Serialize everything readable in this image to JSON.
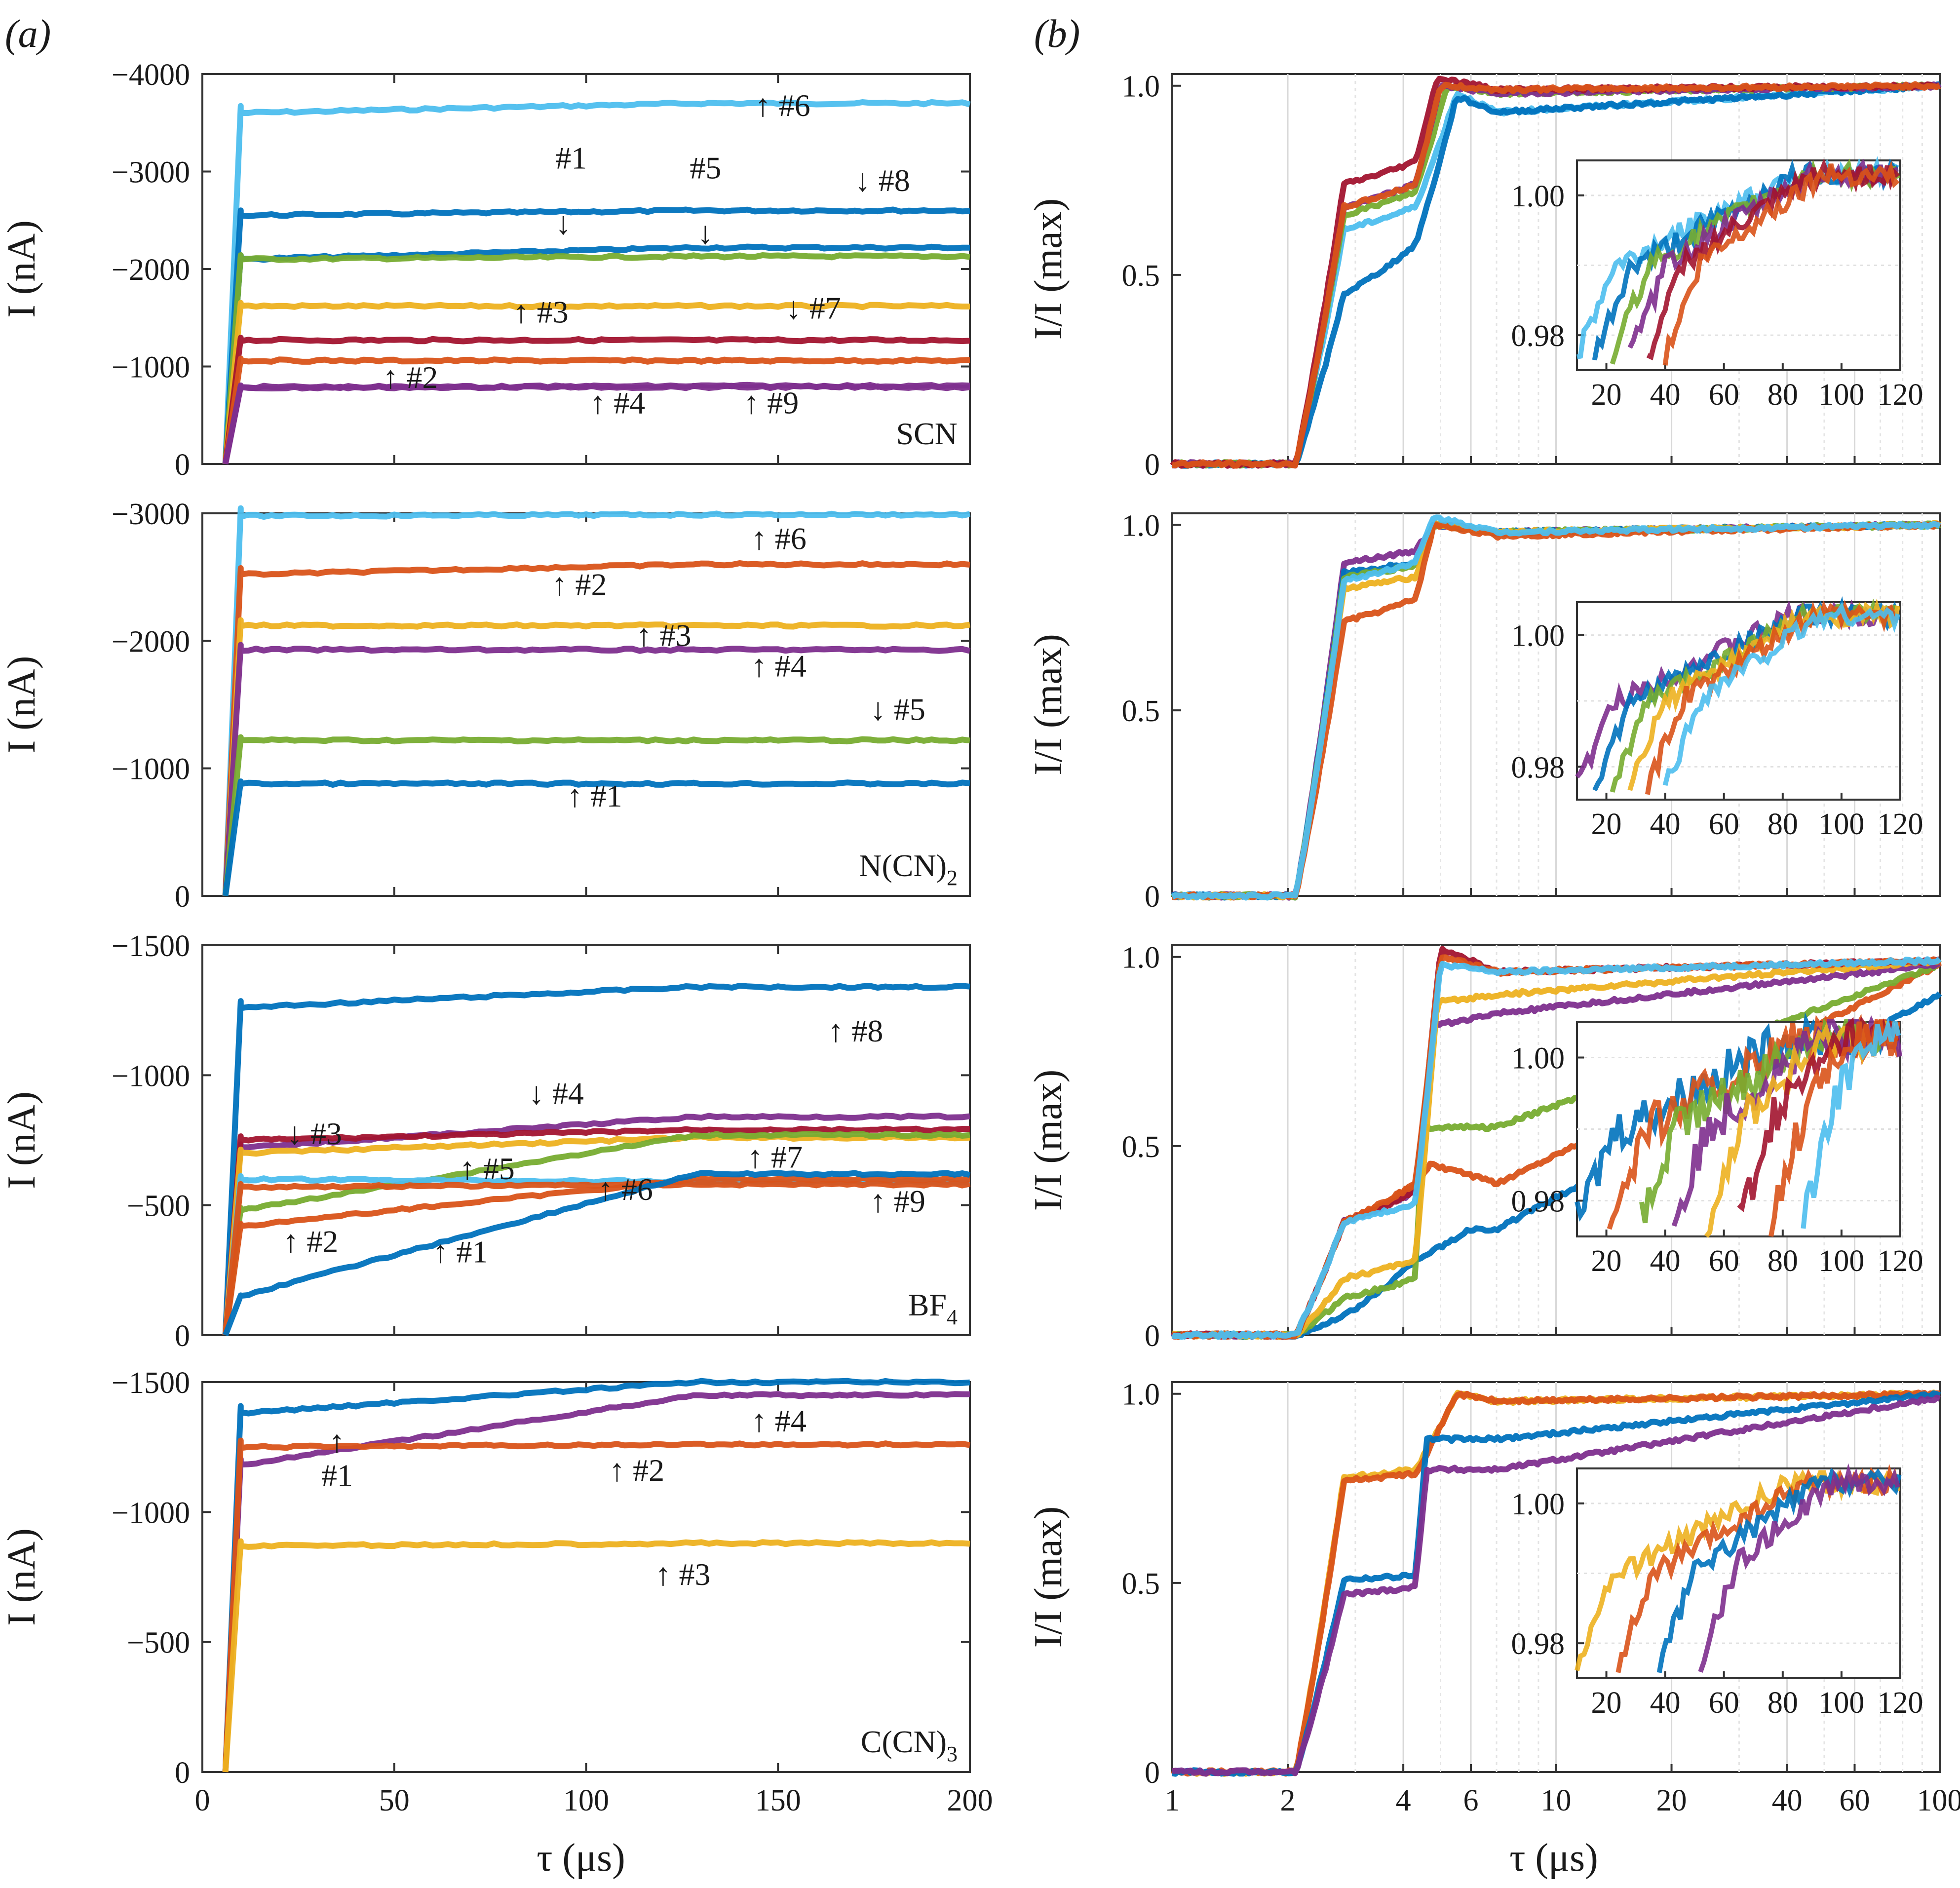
{
  "figure": {
    "panel_a_label": "(a)",
    "panel_b_label": "(b)",
    "x_label_a": "τ (μs)",
    "x_label_b": "τ (μs)",
    "y_label_a": "I (nA)",
    "y_label_b": "I/I (max)"
  },
  "colors": {
    "blue": "#0072BD",
    "orange": "#D95319",
    "yellow": "#EDB120",
    "purple": "#7E2F8E",
    "green": "#77AC30",
    "cyan": "#4DBEEE",
    "darkred": "#A2142F"
  },
  "chart_data": [
    {
      "type": "line",
      "id": "a-scn",
      "ion": "SCN",
      "xlabel": "τ (μs)",
      "ylabel": "I (nA)",
      "xlim": [
        0,
        200
      ],
      "ylim": [
        0,
        -4000
      ],
      "xticks": [
        0,
        50,
        100,
        150,
        200
      ],
      "yticks": [
        0,
        -1000,
        -2000,
        -3000,
        -4000
      ],
      "ytick_labels": [
        "0",
        "−1000",
        "−2000",
        "−3000",
        "−4000"
      ],
      "series": [
        {
          "name": "#6",
          "color": "cyan",
          "values": [
            -3600,
            -3700
          ]
        },
        {
          "name": "#8",
          "color": "blue",
          "values": [
            -2550,
            -2600
          ]
        },
        {
          "name": "#1",
          "color": "blue",
          "values": [
            -2100,
            -2220
          ]
        },
        {
          "name": "#5",
          "color": "green",
          "values": [
            -2100,
            -2130
          ]
        },
        {
          "name": "#3",
          "color": "yellow",
          "values": [
            -1620,
            -1620
          ]
        },
        {
          "name": "#7",
          "color": "darkred",
          "values": [
            -1270,
            -1270
          ]
        },
        {
          "name": "#2",
          "color": "orange",
          "values": [
            -1060,
            -1060
          ]
        },
        {
          "name": "#4",
          "color": "purple",
          "values": [
            -780,
            -800
          ]
        },
        {
          "name": "#9",
          "color": "purple",
          "values": [
            -790,
            -790
          ]
        }
      ],
      "annotations": [
        {
          "text": "↑ #6",
          "x": 144,
          "y": -3570
        },
        {
          "text": "#1",
          "x": 92,
          "y": -3030
        },
        {
          "text": "#5",
          "x": 127,
          "y": -2930
        },
        {
          "text": "↓ #8",
          "x": 170,
          "y": -2800
        },
        {
          "text": "↓",
          "x": 92,
          "y": -2360
        },
        {
          "text": "↓",
          "x": 129,
          "y": -2260
        },
        {
          "text": "↑ #3",
          "x": 81,
          "y": -1450
        },
        {
          "text": "↓ #7",
          "x": 152,
          "y": -1490
        },
        {
          "text": "↑ #2",
          "x": 47,
          "y": -780
        },
        {
          "text": "↑ #4",
          "x": 101,
          "y": -520
        },
        {
          "text": "↑ #9",
          "x": 141,
          "y": -520
        }
      ]
    },
    {
      "type": "line",
      "id": "a-ncn",
      "ion": "N(CN)",
      "ion_sub": "2",
      "xlabel": "τ (μs)",
      "ylabel": "I (nA)",
      "xlim": [
        0,
        200
      ],
      "ylim": [
        0,
        -3000
      ],
      "xticks": [
        0,
        50,
        100,
        150,
        200
      ],
      "yticks": [
        0,
        -1000,
        -2000,
        -3000
      ],
      "ytick_labels": [
        "0",
        "−1000",
        "−2000",
        "−3000"
      ],
      "series": [
        {
          "name": "#6",
          "color": "cyan",
          "values": [
            -2980,
            -2990
          ]
        },
        {
          "name": "#2",
          "color": "orange",
          "values": [
            -2520,
            -2600
          ]
        },
        {
          "name": "#3",
          "color": "yellow",
          "values": [
            -2120,
            -2120
          ]
        },
        {
          "name": "#4",
          "color": "purple",
          "values": [
            -1930,
            -1930
          ]
        },
        {
          "name": "#5",
          "color": "green",
          "values": [
            -1220,
            -1220
          ]
        },
        {
          "name": "#1",
          "color": "blue",
          "values": [
            -880,
            -880
          ]
        }
      ],
      "annotations": [
        {
          "text": "↑ #6",
          "x": 143,
          "y": -2720
        },
        {
          "text": "↑ #2",
          "x": 91,
          "y": -2360
        },
        {
          "text": "↑ #3",
          "x": 113,
          "y": -1960
        },
        {
          "text": "↑ #4",
          "x": 143,
          "y": -1720
        },
        {
          "text": "↓ #5",
          "x": 174,
          "y": -1380
        },
        {
          "text": "↑ #1",
          "x": 95,
          "y": -700
        }
      ]
    },
    {
      "type": "line",
      "id": "a-bf4",
      "ion": "BF",
      "ion_sub": "4",
      "xlabel": "τ (μs)",
      "ylabel": "I (nA)",
      "xlim": [
        0,
        200
      ],
      "ylim": [
        0,
        -1500
      ],
      "xticks": [
        0,
        50,
        100,
        150,
        200
      ],
      "yticks": [
        0,
        -500,
        -1000,
        -1500
      ],
      "ytick_labels": [
        "0",
        "−500",
        "−1000",
        "−1500"
      ],
      "series": [
        {
          "name": "#8",
          "color": "blue",
          "values": [
            -1260,
            -1340
          ]
        },
        {
          "name": "#4",
          "color": "purple",
          "values": [
            -720,
            -840
          ]
        },
        {
          "name": "#3",
          "color": "darkred",
          "values": [
            -750,
            -790
          ]
        },
        {
          "name": "#7",
          "color": "yellow",
          "values": [
            -700,
            -760
          ]
        },
        {
          "name": "#5",
          "color": "green",
          "values": [
            -480,
            -770
          ]
        },
        {
          "name": "#6",
          "color": "cyan",
          "values": [
            -600,
            -590
          ]
        },
        {
          "name": "#9",
          "color": "orange",
          "values": [
            -570,
            -580
          ]
        },
        {
          "name": "#2",
          "color": "orange",
          "values": [
            -420,
            -600
          ]
        },
        {
          "name": "#1",
          "color": "blue",
          "values": [
            -150,
            -620
          ]
        }
      ],
      "annotations": [
        {
          "text": "↑ #8",
          "x": 163,
          "y": -1130
        },
        {
          "text": "↓ #4",
          "x": 85,
          "y": -890
        },
        {
          "text": "↓ #3",
          "x": 22,
          "y": -735
        },
        {
          "text": "↑ #7",
          "x": 142,
          "y": -645
        },
        {
          "text": "↑ #5",
          "x": 67,
          "y": -600
        },
        {
          "text": "↑ #6",
          "x": 103,
          "y": -520
        },
        {
          "text": "↑ #9",
          "x": 174,
          "y": -475
        },
        {
          "text": "↑ #2",
          "x": 21,
          "y": -320
        },
        {
          "text": "↑ #1",
          "x": 60,
          "y": -280
        }
      ]
    },
    {
      "type": "line",
      "id": "a-ccn",
      "ion": "C(CN)",
      "ion_sub": "3",
      "xlabel": "τ (μs)",
      "ylabel": "I (nA)",
      "xlim": [
        0,
        200
      ],
      "ylim": [
        0,
        -1500
      ],
      "xticks": [
        0,
        50,
        100,
        150,
        200
      ],
      "yticks": [
        -500,
        -1000,
        -1500
      ],
      "ytick_labels": [
        "−500",
        "−1000",
        "−1500"
      ],
      "series": [
        {
          "name": "#1",
          "color": "blue",
          "values": [
            -1380,
            -1500
          ]
        },
        {
          "name": "#4",
          "color": "purple",
          "values": [
            -1180,
            -1450
          ]
        },
        {
          "name": "#2",
          "color": "orange",
          "values": [
            -1250,
            -1260
          ]
        },
        {
          "name": "#3",
          "color": "yellow",
          "values": [
            -870,
            -880
          ]
        }
      ],
      "annotations": [
        {
          "text": "↑",
          "x": 33,
          "y": -1230
        },
        {
          "text": "#1",
          "x": 31,
          "y": -1100
        },
        {
          "text": "↑ #4",
          "x": 143,
          "y": -1310
        },
        {
          "text": "↑ #2",
          "x": 106,
          "y": -1120
        },
        {
          "text": "↑ #3",
          "x": 118,
          "y": -720
        }
      ]
    },
    {
      "type": "line",
      "id": "b-scn",
      "xscale": "log",
      "xlabel": "τ (μs)",
      "ylabel": "I/I (max)",
      "xlim": [
        1,
        100
      ],
      "ylim": [
        0,
        1.0
      ],
      "yticks": [
        0,
        0.5,
        1.0
      ],
      "ytick_labels": [
        "0",
        "0.5",
        "1.0"
      ],
      "inset": {
        "xlim": [
          10,
          120
        ],
        "ylim": [
          0.975,
          1.005
        ],
        "yticks": [
          0.98,
          1.0
        ],
        "ytick_labels": [
          "0.98",
          "1.00"
        ],
        "xticks": [
          20,
          40,
          60,
          80,
          100,
          120
        ]
      }
    },
    {
      "type": "line",
      "id": "b-ncn",
      "xscale": "log",
      "xlabel": "τ (μs)",
      "ylabel": "I/I (max)",
      "xlim": [
        1,
        100
      ],
      "ylim": [
        0,
        1.0
      ],
      "yticks": [
        0,
        0.5,
        1.0
      ],
      "ytick_labels": [
        "0",
        "0.5",
        "1.0"
      ],
      "inset": {
        "xlim": [
          10,
          120
        ],
        "ylim": [
          0.975,
          1.005
        ],
        "yticks": [
          0.98,
          1.0
        ],
        "ytick_labels": [
          "0.98",
          "1.00"
        ],
        "xticks": [
          20,
          40,
          60,
          80,
          100,
          120
        ]
      }
    },
    {
      "type": "line",
      "id": "b-bf4",
      "xscale": "log",
      "xlabel": "τ (μs)",
      "ylabel": "I/I (max)",
      "xlim": [
        1,
        100
      ],
      "ylim": [
        0,
        1.0
      ],
      "yticks": [
        0,
        0.5,
        1.0
      ],
      "ytick_labels": [
        "0",
        "0.5",
        "1.0"
      ],
      "inset": {
        "xlim": [
          10,
          120
        ],
        "ylim": [
          0.975,
          1.005
        ],
        "yticks": [
          0.98,
          1.0
        ],
        "ytick_labels": [
          "0.98",
          "1.00"
        ],
        "xticks": [
          20,
          40,
          60,
          80,
          100,
          120
        ]
      }
    },
    {
      "type": "line",
      "id": "b-ccn",
      "xscale": "log",
      "xlabel": "τ (μs)",
      "ylabel": "I/I (max)",
      "xlim": [
        1,
        100
      ],
      "ylim": [
        0,
        1.0
      ],
      "xticks": [
        1,
        2,
        4,
        6,
        10,
        20,
        40,
        60,
        100
      ],
      "yticks": [
        0,
        0.5,
        1.0
      ],
      "ytick_labels": [
        "0",
        "0.5",
        "1.0"
      ],
      "inset": {
        "xlim": [
          10,
          120
        ],
        "ylim": [
          0.975,
          1.005
        ],
        "yticks": [
          0.98,
          1.0
        ],
        "ytick_labels": [
          "0.98",
          "1.00"
        ],
        "xticks": [
          20,
          40,
          60,
          80,
          100,
          120
        ]
      }
    }
  ],
  "b_series": {
    "b-scn": [
      {
        "color": "cyan",
        "plateau": 0.62,
        "plateau2": 0.68,
        "jump": 5.5,
        "peak": 0.98,
        "drop": 0.93
      },
      {
        "color": "blue",
        "plateau": 0.45,
        "plateau2": 0.58,
        "jump": 5.5,
        "peak": 0.97,
        "drop": 0.93
      },
      {
        "color": "green",
        "plateau": 0.66,
        "plateau2": 0.72,
        "jump": 5.2,
        "peak": 1.0,
        "drop": 0.98
      },
      {
        "color": "purple",
        "plateau": 0.68,
        "plateau2": 0.74,
        "jump": 5.0,
        "peak": 1.0,
        "drop": 0.98
      },
      {
        "color": "darkred",
        "plateau": 0.74,
        "plateau2": 0.8,
        "jump": 4.9,
        "peak": 1.02,
        "drop": 0.99
      },
      {
        "color": "orange",
        "plateau": 0.68,
        "plateau2": 0.74,
        "jump": 5.0,
        "peak": 1.0,
        "drop": 0.99
      }
    ],
    "b-ncn": [
      {
        "color": "purple",
        "plateau": 0.9,
        "plateau2": 0.93,
        "jump": 4.8,
        "peak": 1.0,
        "drop": 0.98
      },
      {
        "color": "blue",
        "plateau": 0.87,
        "plateau2": 0.9,
        "jump": 4.8,
        "peak": 1.0,
        "drop": 0.98
      },
      {
        "color": "green",
        "plateau": 0.86,
        "plateau2": 0.89,
        "jump": 4.8,
        "peak": 1.0,
        "drop": 0.98
      },
      {
        "color": "yellow",
        "plateau": 0.83,
        "plateau2": 0.86,
        "jump": 4.8,
        "peak": 1.0,
        "drop": 0.98
      },
      {
        "color": "orange",
        "plateau": 0.74,
        "plateau2": 0.8,
        "jump": 4.8,
        "peak": 1.0,
        "drop": 0.97
      },
      {
        "color": "cyan",
        "plateau": 0.85,
        "plateau2": 0.9,
        "jump": 4.8,
        "peak": 1.02,
        "drop": 0.98
      }
    ],
    "b-bf4": [
      {
        "color": "blue",
        "plateau": 0.05,
        "plateau2": 0.2,
        "jump": 6,
        "peak": 0.28,
        "drop": 0.28,
        "late": 0.9
      },
      {
        "color": "orange",
        "plateau": 0.3,
        "plateau2": 0.4,
        "jump": 4.7,
        "peak": 0.45,
        "drop": 0.4,
        "late": 0.98
      },
      {
        "color": "green",
        "plateau": 0.1,
        "plateau2": 0.15,
        "jump": 4.5,
        "peak": 0.55,
        "drop": 0.55,
        "late": 0.98
      },
      {
        "color": "purple",
        "plateau": 0.3,
        "plateau2": 0.38,
        "jump": 4.8,
        "peak": 0.82,
        "drop": 0.85,
        "late": 0.98
      },
      {
        "color": "yellow",
        "plateau": 0.15,
        "plateau2": 0.2,
        "jump": 4.9,
        "peak": 0.88,
        "drop": 0.9,
        "late": 0.99
      },
      {
        "color": "darkred",
        "plateau": 0.3,
        "plateau2": 0.38,
        "jump": 5.0,
        "peak": 1.02,
        "drop": 0.96,
        "late": 0.99
      },
      {
        "color": "orange",
        "plateau": 0.3,
        "plateau2": 0.4,
        "jump": 5.0,
        "peak": 1.0,
        "drop": 0.96,
        "late": 0.99
      },
      {
        "color": "cyan",
        "plateau": 0.3,
        "plateau2": 0.35,
        "jump": 5.0,
        "peak": 0.98,
        "drop": 0.96,
        "late": 0.99
      }
    ],
    "b-ccn": [
      {
        "color": "yellow",
        "plateau": 0.78,
        "plateau2": 0.8,
        "jump": 5.5,
        "peak": 1.0,
        "drop": 0.98,
        "late": 1.0
      },
      {
        "color": "orange",
        "plateau": 0.77,
        "plateau2": 0.79,
        "jump": 5.5,
        "peak": 1.0,
        "drop": 0.98,
        "late": 1.0
      },
      {
        "color": "blue",
        "plateau": 0.51,
        "plateau2": 0.52,
        "jump": 4.6,
        "peak": 0.88,
        "drop": 0.88,
        "late": 1.0
      },
      {
        "color": "purple",
        "plateau": 0.47,
        "plateau2": 0.49,
        "jump": 4.6,
        "peak": 0.8,
        "drop": 0.8,
        "late": 0.99
      }
    ]
  }
}
